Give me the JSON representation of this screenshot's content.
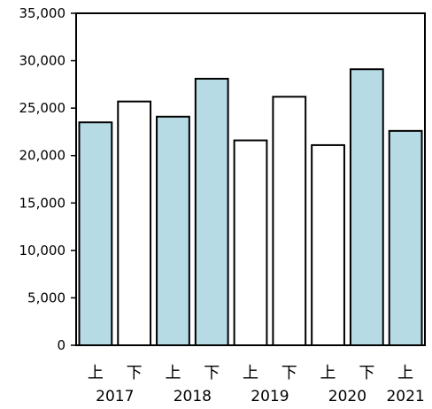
{
  "chart_data": {
    "type": "bar",
    "categories": [
      "上",
      "下",
      "上",
      "下",
      "上",
      "下",
      "上",
      "下",
      "上"
    ],
    "years": [
      "2017",
      "2018",
      "2019",
      "2020",
      "2021"
    ],
    "values": [
      23500,
      25700,
      24100,
      28100,
      21600,
      26200,
      21100,
      29100,
      22600
    ],
    "bar_colors": [
      "#b6dbe4",
      "#ffffff",
      "#b6dbe4",
      "#b6dbe4",
      "#ffffff",
      "#ffffff",
      "#ffffff",
      "#b6dbe4",
      "#b6dbe4"
    ],
    "y_ticks": [
      "0",
      "5,000",
      "10,000",
      "15,000",
      "20,000",
      "25,000",
      "30,000",
      "35,000"
    ],
    "ylim": [
      0,
      35000
    ],
    "grid": false,
    "legend": "none"
  }
}
